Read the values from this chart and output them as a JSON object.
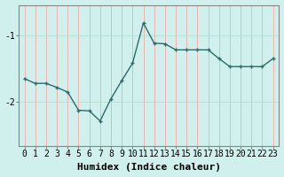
{
  "x": [
    0,
    1,
    2,
    3,
    4,
    5,
    6,
    7,
    8,
    9,
    10,
    11,
    12,
    13,
    14,
    15,
    16,
    17,
    18,
    19,
    20,
    21,
    22,
    23
  ],
  "y": [
    -1.65,
    -1.72,
    -1.72,
    -1.78,
    -1.85,
    -2.12,
    -2.13,
    -2.28,
    -1.95,
    -1.68,
    -1.42,
    -0.82,
    -1.12,
    -1.13,
    -1.22,
    -1.22,
    -1.22,
    -1.22,
    -1.35,
    -1.47,
    -1.47,
    -1.47,
    -1.47,
    -1.35
  ],
  "line_color": "#2e6b6b",
  "marker": "+",
  "marker_size": 3,
  "marker_lw": 1.0,
  "line_width": 1.0,
  "bg_color": "#cff0ec",
  "plot_bg_color": "#cff0ec",
  "grid_color_v": "#ff9999",
  "grid_color_h": "#aaddcc",
  "xlabel": "Humidex (Indice chaleur)",
  "xlabel_fontsize": 8,
  "tick_fontsize": 7,
  "yticks": [
    -2,
    -1
  ],
  "ylim": [
    -2.65,
    -0.55
  ],
  "xlim": [
    -0.5,
    23.5
  ],
  "spine_color": "#888888"
}
